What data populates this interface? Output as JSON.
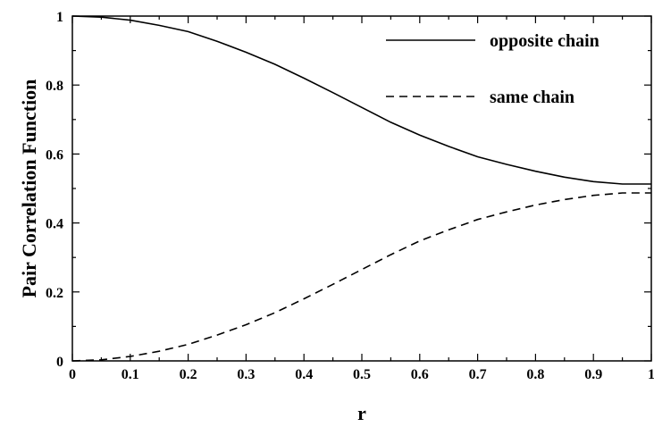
{
  "chart_data": {
    "type": "line",
    "xlabel": "r",
    "ylabel": "Pair Correlation Function",
    "xlim": [
      0,
      1
    ],
    "ylim": [
      0,
      1
    ],
    "x_ticks": [
      "0",
      "0.1",
      "0.2",
      "0.3",
      "0.4",
      "0.5",
      "0.6",
      "0.7",
      "0.8",
      "0.9",
      "1"
    ],
    "y_ticks": [
      "0",
      "0.2",
      "0.4",
      "0.6",
      "0.8",
      "1"
    ],
    "grid": false,
    "legend_position": "top-right",
    "series": [
      {
        "name": "opposite chain",
        "style": "solid",
        "color": "#000000",
        "x": [
          0,
          0.05,
          0.1,
          0.15,
          0.2,
          0.25,
          0.3,
          0.35,
          0.4,
          0.45,
          0.5,
          0.55,
          0.6,
          0.65,
          0.7,
          0.75,
          0.8,
          0.85,
          0.9,
          0.95,
          1
        ],
        "y": [
          1.0,
          0.997,
          0.988,
          0.973,
          0.955,
          0.927,
          0.895,
          0.86,
          0.82,
          0.778,
          0.735,
          0.692,
          0.655,
          0.622,
          0.592,
          0.57,
          0.55,
          0.533,
          0.52,
          0.513,
          0.513
        ]
      },
      {
        "name": "same chain",
        "style": "dashed",
        "color": "#000000",
        "x": [
          0,
          0.05,
          0.1,
          0.15,
          0.2,
          0.25,
          0.3,
          0.35,
          0.4,
          0.45,
          0.5,
          0.55,
          0.6,
          0.65,
          0.7,
          0.75,
          0.8,
          0.85,
          0.9,
          0.95,
          1
        ],
        "y": [
          0.0,
          0.003,
          0.013,
          0.028,
          0.048,
          0.075,
          0.105,
          0.14,
          0.18,
          0.222,
          0.265,
          0.308,
          0.348,
          0.38,
          0.41,
          0.432,
          0.452,
          0.468,
          0.48,
          0.487,
          0.487
        ]
      }
    ]
  }
}
